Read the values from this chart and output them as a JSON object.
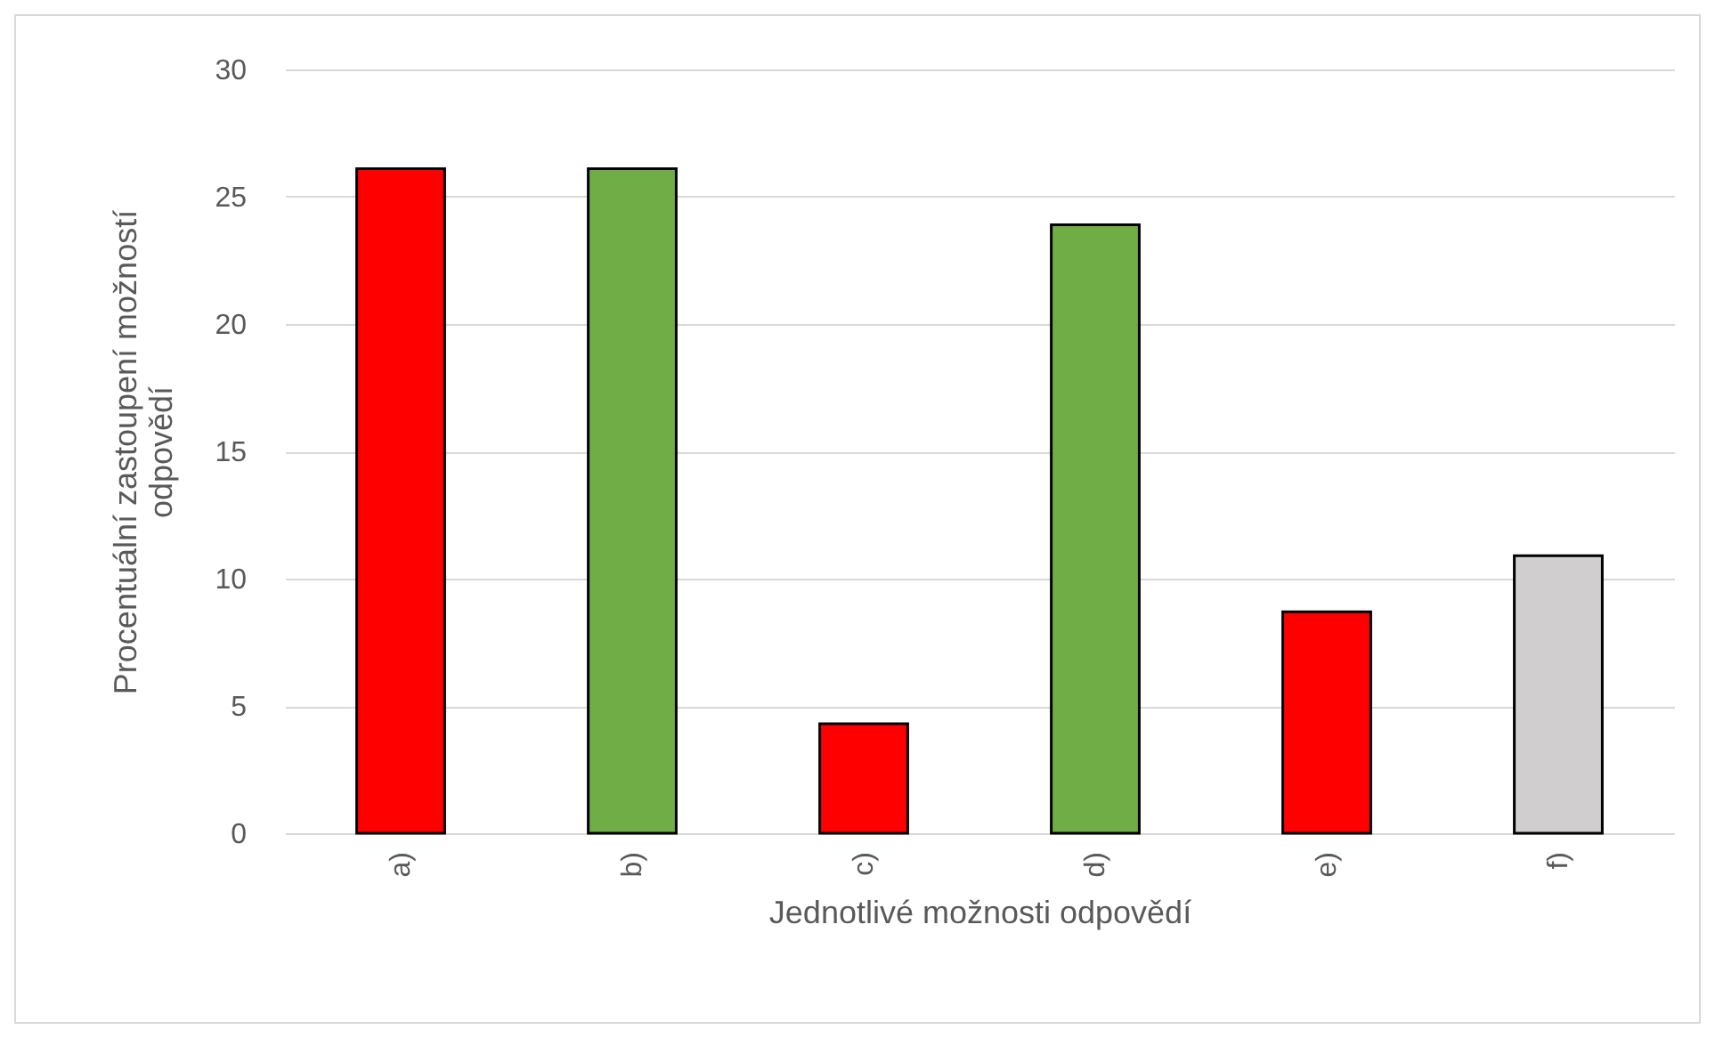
{
  "chart_data": {
    "type": "bar",
    "xlabel": "Jednotlivé možnosti odpovědí",
    "ylabel": "Procentuální zastoupení možností odpovědí",
    "categories": [
      "a)",
      "b)",
      "c)",
      "d)",
      "e)",
      "f)"
    ],
    "values": [
      26.1,
      26.1,
      4.3,
      23.9,
      8.7,
      10.9
    ],
    "colors": [
      "#ff0000",
      "#70ad47",
      "#ff0000",
      "#70ad47",
      "#ff0000",
      "#d0cece"
    ],
    "ylim": [
      0,
      30
    ],
    "yticks": [
      0,
      5,
      10,
      15,
      20,
      25,
      30
    ],
    "grid": "y"
  }
}
